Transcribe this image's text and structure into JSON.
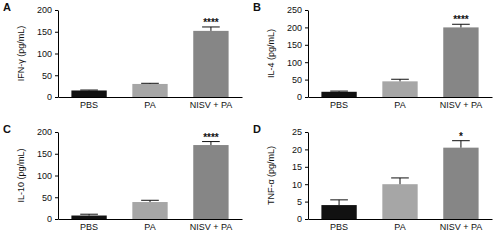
{
  "chart_data": [
    {
      "type": "bar",
      "title": "A",
      "y_label": "IFN-γ (pg/mL)",
      "categories": [
        "PBS",
        "PA",
        "NISV + PA"
      ],
      "values": [
        15,
        30,
        152
      ],
      "errors": [
        1,
        1.5,
        9
      ],
      "colors": [
        "#111111",
        "#a6a6a6",
        "#868686"
      ],
      "ylim": [
        0,
        200
      ],
      "yticks": [
        0,
        50,
        100,
        150,
        200
      ],
      "annotations": [
        {
          "category": "NISV + PA",
          "text": "****"
        }
      ]
    },
    {
      "type": "bar",
      "title": "B",
      "y_label": "IL-4 (pg/mL)",
      "categories": [
        "PBS",
        "PA",
        "NISV + PA"
      ],
      "values": [
        15,
        45,
        200
      ],
      "errors": [
        2,
        6,
        9
      ],
      "colors": [
        "#111111",
        "#a6a6a6",
        "#868686"
      ],
      "ylim": [
        0,
        250
      ],
      "yticks": [
        0,
        50,
        100,
        150,
        200,
        250
      ],
      "annotations": [
        {
          "category": "NISV + PA",
          "text": "****"
        }
      ]
    },
    {
      "type": "bar",
      "title": "C",
      "y_label": "IL-10 (pg/mL)",
      "categories": [
        "PBS",
        "PA",
        "NISV + PA"
      ],
      "values": [
        8,
        39,
        170
      ],
      "errors": [
        3,
        4,
        8
      ],
      "colors": [
        "#111111",
        "#a6a6a6",
        "#868686"
      ],
      "ylim": [
        0,
        200
      ],
      "yticks": [
        0,
        50,
        100,
        150,
        200
      ],
      "annotations": [
        {
          "category": "NISV + PA",
          "text": "****"
        }
      ]
    },
    {
      "type": "bar",
      "title": "D",
      "y_label": "TNF-α (pg/mL)",
      "categories": [
        "PBS",
        "PA",
        "NISV + PA"
      ],
      "values": [
        4,
        10,
        20.5
      ],
      "errors": [
        1.5,
        1.8,
        2
      ],
      "colors": [
        "#111111",
        "#a6a6a6",
        "#868686"
      ],
      "ylim": [
        0,
        25
      ],
      "yticks": [
        0,
        5,
        10,
        15,
        20,
        25
      ],
      "annotations": [
        {
          "category": "NISV + PA",
          "text": "*"
        }
      ]
    }
  ]
}
